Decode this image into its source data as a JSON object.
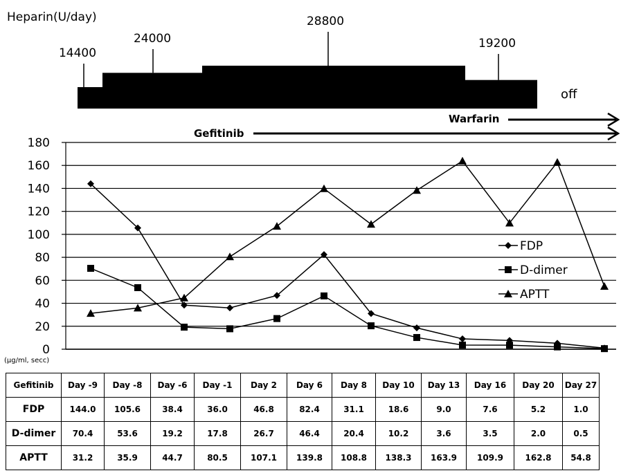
{
  "heparin": {
    "title": "Heparin(U/day)",
    "doses": [
      "14400",
      "24000",
      "28800",
      "19200"
    ],
    "off_label": "off",
    "dose_values": [
      14400,
      24000,
      28800,
      19200
    ]
  },
  "therapies": {
    "gefitinib_label": "Gefitinib",
    "warfarin_label": "Warfarin"
  },
  "chart_data": {
    "type": "line",
    "categories": [
      "Day -9",
      "Day -8",
      "Day -6",
      "Day -1",
      "Day 2",
      "Day 6",
      "Day 8",
      "Day 10",
      "Day 13",
      "Day 16",
      "Day 20",
      "Day 27"
    ],
    "series": [
      {
        "name": "FDP",
        "marker": "diamond",
        "values": [
          144.0,
          105.6,
          38.4,
          36.0,
          46.8,
          82.4,
          31.1,
          18.6,
          9.0,
          7.6,
          5.2,
          1.0
        ]
      },
      {
        "name": "D-dimer",
        "marker": "square",
        "values": [
          70.4,
          53.6,
          19.2,
          17.8,
          26.7,
          46.4,
          20.4,
          10.2,
          3.6,
          3.5,
          2.0,
          0.5
        ]
      },
      {
        "name": "APTT",
        "marker": "triangle",
        "values": [
          31.2,
          35.9,
          44.7,
          80.5,
          107.1,
          139.8,
          108.8,
          138.3,
          163.9,
          109.9,
          162.8,
          54.8
        ]
      }
    ],
    "ylim": [
      0,
      180
    ],
    "yticks": [
      "0",
      "20",
      "40",
      "60",
      "80",
      "100",
      "120",
      "140",
      "160",
      "180"
    ],
    "unit_label": "(μg/ml, secc)",
    "grid": true,
    "legend_position": "right",
    "line_color": "#000000"
  },
  "table": {
    "corner_label": "Gefitinib",
    "columns": [
      "Day -9",
      "Day -8",
      "Day -6",
      "Day -1",
      "Day 2",
      "Day 6",
      "Day 8",
      "Day 10",
      "Day 13",
      "Day 16",
      "Day 20",
      "Day 27"
    ],
    "rows": [
      {
        "label": "FDP",
        "cells": [
          "144.0",
          "105.6",
          "38.4",
          "36.0",
          "46.8",
          "82.4",
          "31.1",
          "18.6",
          "9.0",
          "7.6",
          "5.2",
          "1.0"
        ]
      },
      {
        "label": "D-dimer",
        "cells": [
          "70.4",
          "53.6",
          "19.2",
          "17.8",
          "26.7",
          "46.4",
          "20.4",
          "10.2",
          "3.6",
          "3.5",
          "2.0",
          "0.5"
        ]
      },
      {
        "label": "APTT",
        "cells": [
          "31.2",
          "35.9",
          "44.7",
          "80.5",
          "107.1",
          "139.8",
          "108.8",
          "138.3",
          "163.9",
          "109.9",
          "162.8",
          "54.8"
        ]
      }
    ]
  }
}
